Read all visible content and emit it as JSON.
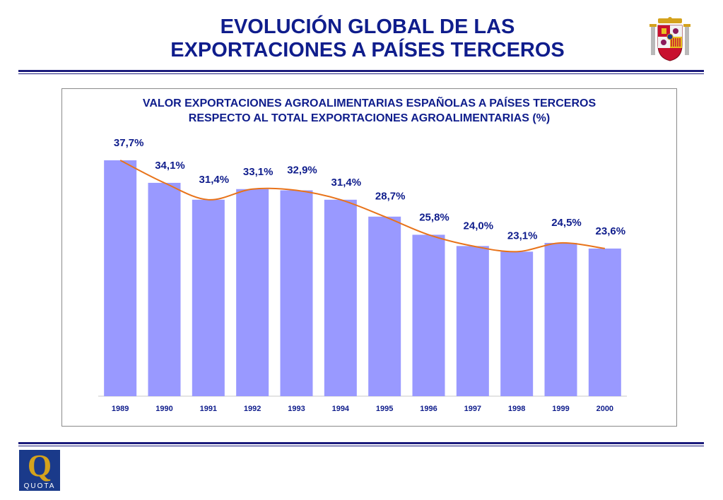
{
  "slide": {
    "title_line1": "EVOLUCIÓN GLOBAL DE LAS",
    "title_line2": "EXPORTACIONES A PAÍSES TERCEROS"
  },
  "logo": {
    "quota_letter": "Q",
    "quota_text": "QUOTA"
  },
  "colors": {
    "title": "#0f1d8c",
    "bar": "#9999ff",
    "trend_line": "#e8731a",
    "rule": "#1c1c7c"
  },
  "chart_data": {
    "type": "bar",
    "title_line1": "VALOR EXPORTACIONES AGROALIMENTARIAS ESPAÑOLAS A PAÍSES TERCEROS",
    "title_line2": "RESPECTO AL TOTAL EXPORTACIONES AGROALIMENTARIAS (%)",
    "categories": [
      "1989",
      "1990",
      "1991",
      "1992",
      "1993",
      "1994",
      "1995",
      "1996",
      "1997",
      "1998",
      "1999",
      "2000"
    ],
    "values": [
      37.7,
      34.1,
      31.4,
      33.1,
      32.9,
      31.4,
      28.7,
      25.8,
      24.0,
      23.1,
      24.5,
      23.6
    ],
    "data_labels": [
      "37,7%",
      "34,1%",
      "31,4%",
      "33,1%",
      "32,9%",
      "31,4%",
      "28,7%",
      "25,8%",
      "24,0%",
      "23,1%",
      "24,5%",
      "23,6%"
    ],
    "ylim": [
      0,
      37.7
    ],
    "overlay": "smoothed trend line",
    "grid": false,
    "legend": "none"
  }
}
